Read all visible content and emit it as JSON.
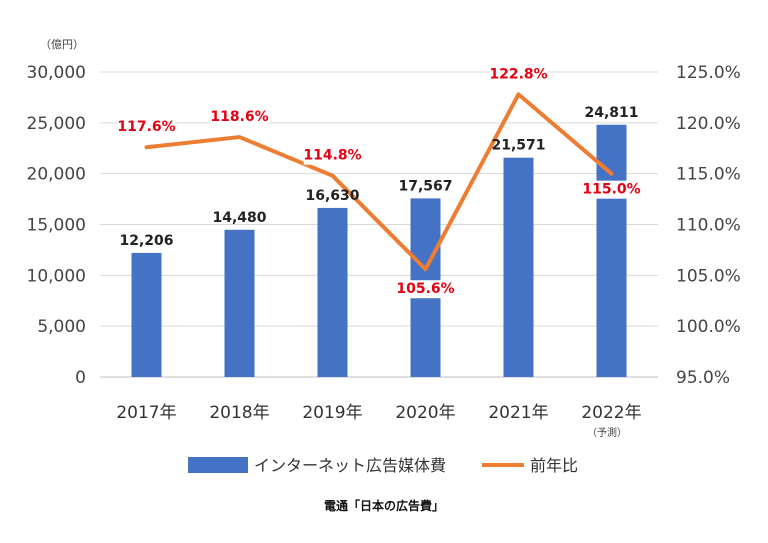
{
  "chart_data": {
    "type": "bar",
    "categories": [
      "2017年",
      "2018年",
      "2019年",
      "2020年",
      "2021年",
      "2022年"
    ],
    "category_note": {
      "index": 5,
      "text": "（予測）"
    },
    "series": [
      {
        "name": "インターネット広告媒体費",
        "type": "bar",
        "axis": "left",
        "values": [
          12206,
          14480,
          16630,
          17567,
          21571,
          24811
        ],
        "labels": [
          "12,206",
          "14,480",
          "16,630",
          "17,567",
          "21,571",
          "24,811"
        ],
        "color": "#4472c4"
      },
      {
        "name": "前年比",
        "type": "line",
        "axis": "right",
        "values": [
          117.6,
          118.6,
          114.8,
          105.6,
          122.8,
          115.0
        ],
        "labels": [
          "117.6%",
          "118.6%",
          "114.8%",
          "105.6%",
          "122.8%",
          "115.0%"
        ],
        "color": "#ed7d31",
        "label_color": "#e60012"
      }
    ],
    "left_axis": {
      "unit": "（億円）",
      "ylim": [
        0,
        30000
      ],
      "ticks": [
        "0",
        "5,000",
        "10,000",
        "15,000",
        "20,000",
        "25,000",
        "30,000"
      ]
    },
    "right_axis": {
      "ylim": [
        95,
        125
      ],
      "ticks": [
        "95.0%",
        "100.0%",
        "105.0%",
        "110.0%",
        "115.0%",
        "120.0%",
        "125.0%"
      ]
    },
    "grid": true,
    "legend_position": "bottom",
    "source": "電通「日本の広告費」"
  }
}
